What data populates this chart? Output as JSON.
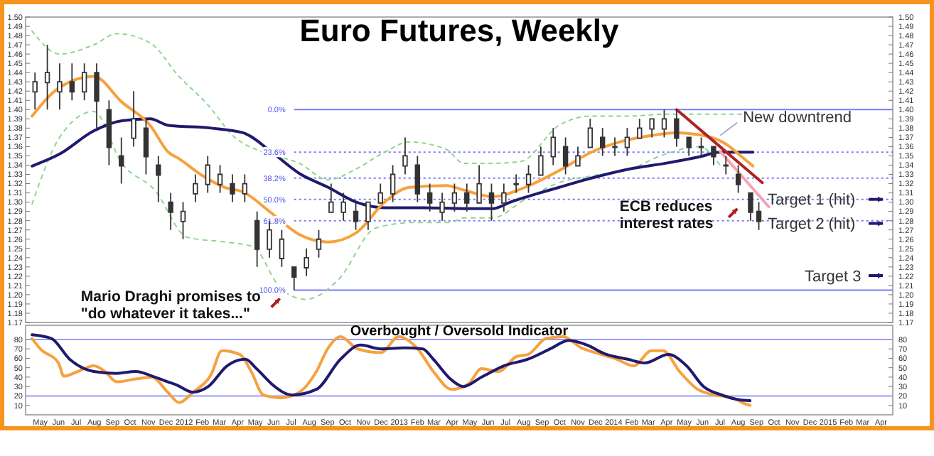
{
  "chart_data": [
    {
      "type": "candlestick",
      "title": "Euro Futures, Weekly",
      "tick_labels": "y",
      "color": "#333333",
      "xlim": [
        "2011-04-20",
        "2015-05-05"
      ],
      "ylim": [
        1.17,
        1.5
      ],
      "y2lim": [
        1.17,
        1.5
      ],
      "yticks": [
        1.17,
        1.18,
        1.19,
        {
          "value": 1.2,
          "label": "1.20"
        },
        1.21,
        1.22,
        1.23,
        1.24,
        1.25,
        1.26,
        1.27,
        1.28,
        1.29,
        {
          "value": 1.3,
          "label": "1.30"
        },
        1.31,
        1.32,
        1.33,
        1.34,
        1.35,
        1.36,
        1.37,
        1.38,
        1.39,
        {
          "value": 1.4,
          "label": "1.40"
        },
        1.41,
        1.42,
        1.43,
        1.44,
        1.45,
        1.46,
        1.47,
        1.48,
        1.49,
        {
          "value": 1.5,
          "label": "1.50"
        }
      ],
      "y2ticks": [
        1.17,
        1.18,
        1.19,
        {
          "value": 1.2,
          "label": "1.20"
        },
        1.21,
        1.22,
        1.23,
        1.24,
        1.25,
        1.26,
        1.27,
        1.28,
        1.29,
        {
          "value": 1.3,
          "label": "1.30"
        },
        1.31,
        1.32,
        1.33,
        1.34,
        1.35,
        1.36,
        1.37,
        1.38,
        1.39,
        {
          "value": 1.4,
          "label": "1.40"
        },
        1.41,
        1.42,
        1.43,
        1.44,
        1.45,
        1.46,
        1.47,
        1.48,
        1.49,
        {
          "value": 1.5,
          "label": "1.50"
        }
      ],
      "x": [
        "2011-05-06",
        "2011-05-27",
        "2011-06-17",
        "2011-07-08",
        "2011-07-29",
        "2011-08-19",
        "2011-09-09",
        "2011-09-30",
        "2011-10-21",
        "2011-11-11",
        "2011-12-02",
        "2011-12-23",
        "2012-01-13",
        "2012-02-03",
        "2012-02-24",
        "2012-03-16",
        "2012-04-06",
        "2012-04-27",
        "2012-05-18",
        "2012-06-08",
        "2012-06-29",
        "2012-07-20",
        "2012-08-10",
        "2012-08-31",
        "2012-09-21",
        "2012-10-12",
        "2012-11-02",
        "2012-11-23",
        "2012-12-14",
        "2013-01-04",
        "2013-01-25",
        "2013-02-15",
        "2013-03-08",
        "2013-03-29",
        "2013-04-19",
        "2013-05-10",
        "2013-05-31",
        "2013-06-21",
        "2013-07-12",
        "2013-08-02",
        "2013-08-23",
        "2013-09-13",
        "2013-10-04",
        "2013-10-25",
        "2013-11-15",
        "2013-12-06",
        "2013-12-27",
        "2014-01-17",
        "2014-02-07",
        "2014-02-28",
        "2014-03-21",
        "2014-04-11",
        "2014-05-02",
        "2014-05-23",
        "2014-06-13",
        "2014-07-04",
        "2014-07-25",
        "2014-08-15",
        "2014-09-05",
        "2014-09-19"
      ],
      "ohlc": [
        [
          1.42,
          1.44,
          1.4,
          1.43
        ],
        [
          1.43,
          1.47,
          1.4,
          1.44
        ],
        [
          1.42,
          1.45,
          1.4,
          1.43
        ],
        [
          1.43,
          1.45,
          1.41,
          1.42
        ],
        [
          1.42,
          1.45,
          1.41,
          1.44
        ],
        [
          1.44,
          1.45,
          1.38,
          1.41
        ],
        [
          1.4,
          1.41,
          1.34,
          1.36
        ],
        [
          1.35,
          1.37,
          1.32,
          1.34
        ],
        [
          1.37,
          1.42,
          1.36,
          1.39
        ],
        [
          1.38,
          1.39,
          1.33,
          1.35
        ],
        [
          1.34,
          1.35,
          1.3,
          1.33
        ],
        [
          1.3,
          1.31,
          1.27,
          1.29
        ],
        [
          1.28,
          1.3,
          1.26,
          1.29
        ],
        [
          1.31,
          1.33,
          1.3,
          1.32
        ],
        [
          1.32,
          1.35,
          1.31,
          1.34
        ],
        [
          1.32,
          1.34,
          1.31,
          1.33
        ],
        [
          1.32,
          1.33,
          1.3,
          1.31
        ],
        [
          1.31,
          1.33,
          1.3,
          1.32
        ],
        [
          1.28,
          1.29,
          1.23,
          1.25
        ],
        [
          1.25,
          1.28,
          1.24,
          1.27
        ],
        [
          1.24,
          1.27,
          1.23,
          1.26
        ],
        [
          1.23,
          1.23,
          1.205,
          1.22
        ],
        [
          1.23,
          1.25,
          1.22,
          1.24
        ],
        [
          1.25,
          1.27,
          1.24,
          1.26
        ],
        [
          1.29,
          1.32,
          1.29,
          1.3
        ],
        [
          1.29,
          1.31,
          1.28,
          1.3
        ],
        [
          1.29,
          1.3,
          1.27,
          1.28
        ],
        [
          1.28,
          1.3,
          1.27,
          1.3
        ],
        [
          1.3,
          1.32,
          1.3,
          1.31
        ],
        [
          1.31,
          1.34,
          1.3,
          1.33
        ],
        [
          1.34,
          1.37,
          1.33,
          1.35
        ],
        [
          1.34,
          1.35,
          1.3,
          1.31
        ],
        [
          1.31,
          1.32,
          1.29,
          1.3
        ],
        [
          1.29,
          1.31,
          1.28,
          1.3
        ],
        [
          1.3,
          1.32,
          1.29,
          1.31
        ],
        [
          1.31,
          1.32,
          1.29,
          1.3
        ],
        [
          1.3,
          1.34,
          1.3,
          1.32
        ],
        [
          1.31,
          1.32,
          1.28,
          1.3
        ],
        [
          1.3,
          1.32,
          1.29,
          1.31
        ],
        [
          1.32,
          1.33,
          1.31,
          1.32
        ],
        [
          1.32,
          1.34,
          1.31,
          1.33
        ],
        [
          1.33,
          1.36,
          1.33,
          1.35
        ],
        [
          1.35,
          1.38,
          1.34,
          1.37
        ],
        [
          1.36,
          1.37,
          1.33,
          1.34
        ],
        [
          1.34,
          1.36,
          1.34,
          1.35
        ],
        [
          1.36,
          1.39,
          1.36,
          1.38
        ],
        [
          1.37,
          1.38,
          1.35,
          1.36
        ],
        [
          1.36,
          1.37,
          1.35,
          1.36
        ],
        [
          1.36,
          1.38,
          1.35,
          1.37
        ],
        [
          1.37,
          1.39,
          1.37,
          1.38
        ],
        [
          1.38,
          1.39,
          1.37,
          1.39
        ],
        [
          1.38,
          1.4,
          1.37,
          1.39
        ],
        [
          1.39,
          1.4,
          1.36,
          1.37
        ],
        [
          1.37,
          1.37,
          1.35,
          1.36
        ],
        [
          1.36,
          1.37,
          1.35,
          1.36
        ],
        [
          1.36,
          1.36,
          1.34,
          1.35
        ],
        [
          1.34,
          1.35,
          1.33,
          1.34
        ],
        [
          1.33,
          1.34,
          1.31,
          1.32
        ],
        [
          1.31,
          1.31,
          1.28,
          1.29
        ],
        [
          1.29,
          1.3,
          1.27,
          1.28
        ]
      ],
      "series": [
        {
          "type": "line",
          "line_style": "dotted",
          "color": "#8fd68f",
          "x": [
            "2011-05-01",
            "2011-06-17",
            "2011-08-14",
            "2011-09-22",
            "2011-11-18",
            "2012-01-06",
            "2012-02-23",
            "2012-04-10",
            "2012-05-28",
            "2012-07-29",
            "2012-09-16",
            "2012-11-03",
            "2012-12-21",
            "2013-02-01",
            "2013-04-05",
            "2013-05-05",
            "2013-06-23",
            "2013-08-10",
            "2013-10-14",
            "2013-12-08",
            "2014-02-12",
            "2014-04-13",
            "2014-06-24",
            "2014-08-21"
          ],
          "values": [
            1.485,
            1.46,
            1.47,
            1.482,
            1.472,
            1.436,
            1.406,
            1.37,
            1.354,
            1.342,
            1.324,
            1.336,
            1.354,
            1.365,
            1.357,
            1.342,
            1.342,
            1.344,
            1.383,
            1.393,
            1.393,
            1.395,
            1.395,
            1.395
          ]
        },
        {
          "type": "line",
          "line_style": "dotted",
          "color": "#8fd68f",
          "x": [
            "2011-05-01",
            "2011-06-17",
            "2011-08-14",
            "2011-10-01",
            "2011-11-26",
            "2012-01-20",
            "2012-03-24",
            "2012-05-11",
            "2012-06-28",
            "2012-08-09",
            "2012-10-03",
            "2012-12-06",
            "2013-02-08",
            "2013-04-12",
            "2013-05-05",
            "2013-06-23",
            "2013-08-17",
            "2013-10-14",
            "2013-12-15",
            "2014-02-12",
            "2014-04-13",
            "2014-06-10",
            "2014-07-15"
          ],
          "values": [
            1.298,
            1.37,
            1.398,
            1.342,
            1.313,
            1.262,
            1.257,
            1.252,
            1.206,
            1.195,
            1.216,
            1.272,
            1.278,
            1.278,
            1.283,
            1.283,
            1.303,
            1.321,
            1.329,
            1.336,
            1.352,
            1.36,
            1.34
          ]
        },
        {
          "type": "line",
          "color": "#1f1a6e",
          "x": [
            "2011-05-01",
            "2011-06-17",
            "2011-08-14",
            "2011-10-01",
            "2011-11-18",
            "2011-12-19",
            "2012-03-01",
            "2012-04-24",
            "2012-06-12",
            "2012-07-29",
            "2012-09-16",
            "2012-11-03",
            "2012-12-21",
            "2013-02-24",
            "2013-05-05",
            "2013-06-23",
            "2013-07-23",
            "2013-10-14",
            "2013-12-08",
            "2014-02-12",
            "2014-04-13",
            "2014-06-10",
            "2014-07-15",
            "2014-09-09"
          ],
          "values": [
            1.339,
            1.352,
            1.377,
            1.388,
            1.39,
            1.383,
            1.38,
            1.375,
            1.354,
            1.331,
            1.316,
            1.3,
            1.294,
            1.294,
            1.293,
            1.293,
            1.3,
            1.316,
            1.326,
            1.336,
            1.342,
            1.349,
            1.354,
            1.354
          ]
        },
        {
          "type": "line",
          "color": "#f7a13e",
          "x": [
            "2011-05-01",
            "2011-06-17",
            "2011-08-14",
            "2011-10-01",
            "2011-11-18",
            "2011-12-19",
            "2012-01-06",
            "2012-02-14",
            "2012-03-24",
            "2012-04-24",
            "2012-06-12",
            "2012-07-29",
            "2012-09-16",
            "2012-11-03",
            "2012-12-21",
            "2013-02-01",
            "2013-04-05",
            "2013-05-05",
            "2013-06-23",
            "2013-08-17",
            "2013-10-14",
            "2013-12-08",
            "2014-01-25",
            "2014-03-20",
            "2014-04-30",
            "2014-06-17",
            "2014-07-27",
            "2014-08-21",
            "2014-09-09"
          ],
          "values": [
            1.393,
            1.424,
            1.436,
            1.408,
            1.383,
            1.354,
            1.347,
            1.329,
            1.316,
            1.311,
            1.288,
            1.265,
            1.257,
            1.267,
            1.3,
            1.316,
            1.318,
            1.313,
            1.306,
            1.316,
            1.334,
            1.354,
            1.365,
            1.372,
            1.375,
            1.372,
            1.362,
            1.349,
            1.339
          ]
        },
        {
          "type": "line",
          "color": "#b22222",
          "x": [
            "2014-05-02",
            "2014-09-25"
          ],
          "values": [
            1.4,
            1.321
          ]
        },
        {
          "type": "line",
          "color": "#f4a6b0",
          "x": [
            "2014-07-15",
            "2014-10-06"
          ],
          "values": [
            1.355,
            1.295
          ]
        }
      ],
      "ref_lines": [
        {
          "axis": "y",
          "value": 1.4,
          "color": "#7b7bff",
          "line_style": "solid"
        },
        {
          "axis": "y",
          "value": 1.354,
          "color": "#7b7bff",
          "line_style": "dotted"
        },
        {
          "axis": "y",
          "value": 1.326,
          "color": "#7b7bff",
          "line_style": "dotted"
        },
        {
          "axis": "y",
          "value": 1.303,
          "color": "#7b7bff",
          "line_style": "dotted"
        },
        {
          "axis": "y",
          "value": 1.28,
          "color": "#7b7bff",
          "line_style": "dotted"
        },
        {
          "axis": "y",
          "value": 1.205,
          "color": "#7b7bff",
          "line_style": "solid"
        }
      ],
      "annotations": [
        "Mario Draghi promises to\n\"do whatever it takes...\"",
        {
          "text": "0.0%",
          "x": "2012-07-20",
          "y": 1.4
        },
        {
          "text": "23.6%",
          "x": "2012-07-20",
          "y": 1.354
        },
        {
          "text": "38.2%",
          "x": "2012-07-20",
          "y": 1.326
        },
        {
          "text": "50.0%",
          "x": "2012-07-20",
          "y": 1.303
        },
        {
          "text": "61.8%",
          "x": "2012-07-20",
          "y": 1.28
        },
        {
          "text": "100.0%",
          "x": "2012-07-20",
          "y": 1.205
        },
        {
          "text": "ECB reduces\ninterest rates",
          "x": "2014-01-25",
          "y": 1.296
        },
        {
          "text": "New downtrend",
          "x": "2014-08-23",
          "y": 1.392
        },
        {
          "text": "Target 1 (hit)",
          "x": "2014-10-04",
          "y": 1.303
        },
        {
          "text": "Target 2 (hit)",
          "x": "2014-10-04",
          "y": 1.277
        },
        "Target 3"
      ]
    },
    {
      "type": "line",
      "title": "Overbought / Oversold Indicator",
      "xlim": [
        "2011-04-20",
        "2015-05-05"
      ],
      "ylim": [
        0,
        95
      ],
      "y2lim": [
        0,
        95
      ],
      "yticks": [
        10,
        20,
        30,
        40,
        50,
        60,
        70,
        80
      ],
      "y2ticks": [
        10,
        20,
        30,
        40,
        50,
        60,
        70,
        80
      ],
      "xticks": [
        {
          "value": "2011-05-15",
          "label": "May"
        },
        {
          "value": "2011-06-15",
          "label": "Jun"
        },
        {
          "value": "2011-07-15",
          "label": "Jul"
        },
        {
          "value": "2011-08-15",
          "label": "Aug"
        },
        {
          "value": "2011-09-15",
          "label": "Sep"
        },
        {
          "value": "2011-10-15",
          "label": "Oct"
        },
        {
          "value": "2011-11-15",
          "label": "Nov"
        },
        {
          "value": "2011-12-15",
          "label": "Dec"
        },
        {
          "value": "2012-01-15",
          "label": "2012"
        },
        {
          "value": "2012-02-15",
          "label": "Feb"
        },
        {
          "value": "2012-03-15",
          "label": "Mar"
        },
        {
          "value": "2012-04-15",
          "label": "Apr"
        },
        {
          "value": "2012-05-15",
          "label": "May"
        },
        {
          "value": "2012-06-15",
          "label": "Jun"
        },
        {
          "value": "2012-07-15",
          "label": "Jul"
        },
        {
          "value": "2012-08-15",
          "label": "Aug"
        },
        {
          "value": "2012-09-15",
          "label": "Sep"
        },
        {
          "value": "2012-10-15",
          "label": "Oct"
        },
        {
          "value": "2012-11-15",
          "label": "Nov"
        },
        {
          "value": "2012-12-15",
          "label": "Dec"
        },
        {
          "value": "2013-01-15",
          "label": "2013"
        },
        {
          "value": "2013-02-15",
          "label": "Feb"
        },
        {
          "value": "2013-03-15",
          "label": "Mar"
        },
        {
          "value": "2013-04-15",
          "label": "Apr"
        },
        {
          "value": "2013-05-15",
          "label": "May"
        },
        {
          "value": "2013-06-15",
          "label": "Jun"
        },
        {
          "value": "2013-07-15",
          "label": "Jul"
        },
        {
          "value": "2013-08-15",
          "label": "Aug"
        },
        {
          "value": "2013-09-15",
          "label": "Sep"
        },
        {
          "value": "2013-10-15",
          "label": "Oct"
        },
        {
          "value": "2013-11-15",
          "label": "Nov"
        },
        {
          "value": "2013-12-15",
          "label": "Dec"
        },
        {
          "value": "2014-01-15",
          "label": "2014"
        },
        {
          "value": "2014-02-15",
          "label": "Feb"
        },
        {
          "value": "2014-03-15",
          "label": "Mar"
        },
        {
          "value": "2014-04-15",
          "label": "Apr"
        },
        {
          "value": "2014-05-15",
          "label": "May"
        },
        {
          "value": "2014-06-15",
          "label": "Jun"
        },
        {
          "value": "2014-07-15",
          "label": "Jul"
        },
        {
          "value": "2014-08-15",
          "label": "Aug"
        },
        {
          "value": "2014-09-15",
          "label": "Sep"
        },
        {
          "value": "2014-10-15",
          "label": "Oct"
        },
        {
          "value": "2014-11-15",
          "label": "Nov"
        },
        {
          "value": "2014-12-15",
          "label": "Dec"
        },
        {
          "value": "2015-01-15",
          "label": "2015"
        },
        {
          "value": "2015-02-15",
          "label": "Feb"
        },
        {
          "value": "2015-03-15",
          "label": "Mar"
        },
        {
          "value": "2015-04-15",
          "label": "Apr"
        }
      ],
      "series": [
        {
          "color": "#f7a13e",
          "x": [
            "2011-05-01",
            "2011-05-15",
            "2011-06-15",
            "2011-06-24",
            "2011-07-18",
            "2011-08-14",
            "2011-09-02",
            "2011-09-22",
            "2011-10-24",
            "2011-11-21",
            "2011-12-18",
            "2012-01-06",
            "2012-01-30",
            "2012-03-01",
            "2012-03-19",
            "2012-04-19",
            "2012-05-08",
            "2012-05-29",
            "2012-06-28",
            "2012-07-29",
            "2012-08-27",
            "2012-09-16",
            "2012-10-07",
            "2012-11-05",
            "2012-12-15",
            "2013-01-14",
            "2013-02-14",
            "2013-03-14",
            "2013-04-14",
            "2013-05-13",
            "2013-06-04",
            "2013-07-03",
            "2013-08-03",
            "2013-08-22",
            "2013-09-22",
            "2013-10-21",
            "2013-11-21",
            "2013-12-20",
            "2014-01-20",
            "2014-02-18",
            "2014-03-20",
            "2014-04-09",
            "2014-05-07",
            "2014-06-07",
            "2014-07-06",
            "2014-08-06",
            "2014-08-25",
            "2014-09-04"
          ],
          "values": [
            81,
            70,
            55,
            41,
            46,
            52,
            46,
            35,
            38,
            40,
            24,
            13,
            24,
            43,
            68,
            64,
            46,
            21,
            18,
            24,
            46,
            71,
            83,
            70,
            66,
            83,
            71,
            46,
            27,
            33,
            49,
            46,
            62,
            64,
            81,
            83,
            71,
            65,
            59,
            52,
            68,
            68,
            46,
            27,
            21,
            18,
            12,
            10
          ]
        },
        {
          "color": "#1f1a6e",
          "x": [
            "2011-05-01",
            "2011-06-03",
            "2011-07-04",
            "2011-08-14",
            "2011-09-22",
            "2011-10-24",
            "2011-11-26",
            "2011-12-18",
            "2012-01-01",
            "2012-01-30",
            "2012-02-25",
            "2012-03-28",
            "2012-04-28",
            "2012-05-17",
            "2012-06-17",
            "2012-07-16",
            "2012-08-27",
            "2012-10-07",
            "2012-11-10",
            "2012-12-15",
            "2013-01-24",
            "2013-02-24",
            "2013-03-14",
            "2013-04-14",
            "2013-05-04",
            "2013-06-04",
            "2013-07-12",
            "2013-08-22",
            "2013-10-02",
            "2013-10-30",
            "2013-12-01",
            "2013-12-30",
            "2014-02-08",
            "2014-03-09",
            "2014-04-18",
            "2014-05-19",
            "2014-06-17",
            "2014-07-18",
            "2014-08-16",
            "2014-09-04"
          ],
          "values": [
            85,
            81,
            59,
            46,
            44,
            46,
            40,
            35,
            32,
            24,
            30,
            52,
            59,
            49,
            30,
            21,
            27,
            59,
            74,
            70,
            71,
            70,
            59,
            37,
            30,
            40,
            52,
            59,
            71,
            79,
            74,
            65,
            59,
            55,
            64,
            52,
            30,
            21,
            16,
            15
          ]
        }
      ],
      "ref_lines": [
        {
          "axis": "y",
          "value": 80,
          "color": "#9a9aff",
          "line_style": "solid"
        },
        {
          "axis": "y",
          "value": 20,
          "color": "#9a9aff",
          "line_style": "solid"
        }
      ]
    }
  ]
}
